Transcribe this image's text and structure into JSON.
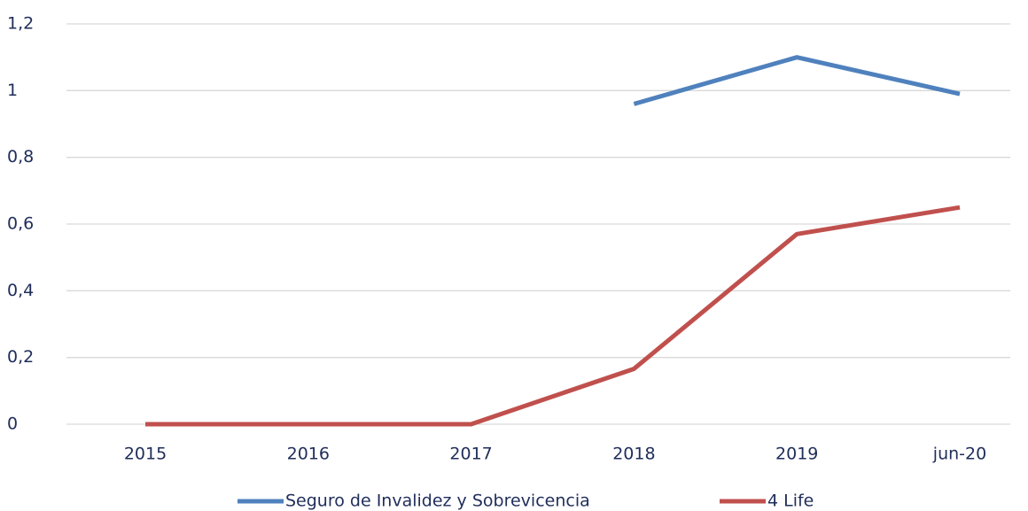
{
  "chart_data": {
    "type": "line",
    "categories": [
      "2015",
      "2016",
      "2017",
      "2018",
      "2019",
      "jun-20"
    ],
    "series": [
      {
        "name": "Seguro de Invalidez y Sobrevicencia",
        "color": "#4f81bd",
        "values": [
          null,
          null,
          null,
          0.96,
          1.1,
          0.99
        ]
      },
      {
        "name": "4 Life",
        "color": "#c0504d",
        "values": [
          0,
          0,
          0,
          0.166,
          0.57,
          0.65
        ]
      }
    ],
    "ylim": [
      0,
      1.2
    ],
    "yticks": [
      0,
      {
        "value": 0.2,
        "label": "0,2"
      },
      {
        "value": 0.4,
        "label": "0,4"
      },
      {
        "value": 0.6,
        "label": "0,6"
      },
      {
        "value": 0.8,
        "label": "0,8"
      },
      1,
      {
        "value": 1.2,
        "label": "1,2"
      }
    ],
    "grid": true,
    "legend": "bottom"
  }
}
